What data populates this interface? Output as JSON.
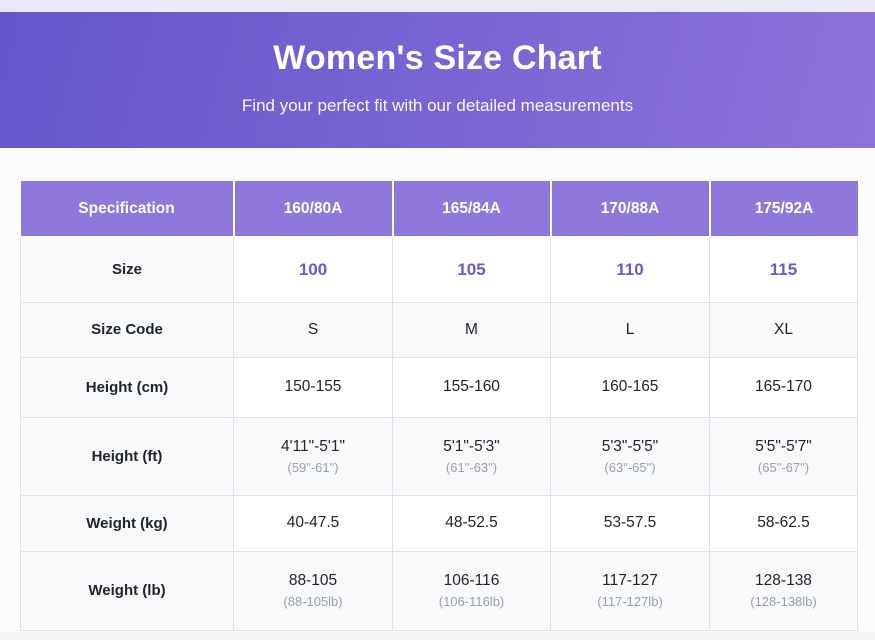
{
  "banner": {
    "title": "Women's Size Chart",
    "subtitle": "Find your perfect fit with our detailed measurements"
  },
  "colors": {
    "banner_gradient_start": "#6456cb",
    "banner_gradient_end": "#8e72da",
    "table_header_bg": "#9077db",
    "accent_text": "#6a5acd",
    "row_stripe_bg": "#f8f9fa",
    "label_column_bg": "#f8f9fa",
    "body_text": "#212529",
    "secondary_text": "#9a9fa5",
    "cell_border": "#dee2e6",
    "top_strip_bg": "#ece9f6"
  },
  "chart_data": {
    "type": "table",
    "title": "Women's Size Chart",
    "columns": [
      "Specification",
      "160/80A",
      "165/84A",
      "170/88A",
      "175/92A"
    ],
    "rows": [
      {
        "label": "Size",
        "values": [
          "100",
          "105",
          "110",
          "115"
        ]
      },
      {
        "label": "Size Code",
        "values": [
          "S",
          "M",
          "L",
          "XL"
        ]
      },
      {
        "label": "Height (cm)",
        "values": [
          "150-155",
          "155-160",
          "160-165",
          "165-170"
        ]
      },
      {
        "label": "Height (ft)",
        "values": [
          "4'11\"-5'1\"",
          "5'1\"-5'3\"",
          "5'3\"-5'5\"",
          "5'5\"-5'7\""
        ],
        "sub_values": [
          "(59\"-61\")",
          "(61\"-63\")",
          "(63\"-65\")",
          "(65\"-67\")"
        ]
      },
      {
        "label": "Weight (kg)",
        "values": [
          "40-47.5",
          "48-52.5",
          "53-57.5",
          "58-62.5"
        ]
      },
      {
        "label": "Weight (lb)",
        "values": [
          "88-105",
          "106-116",
          "117-127",
          "128-138"
        ],
        "sub_values": [
          "(88-105lb)",
          "(106-116lb)",
          "(117-127lb)",
          "(128-138lb)"
        ]
      }
    ]
  }
}
